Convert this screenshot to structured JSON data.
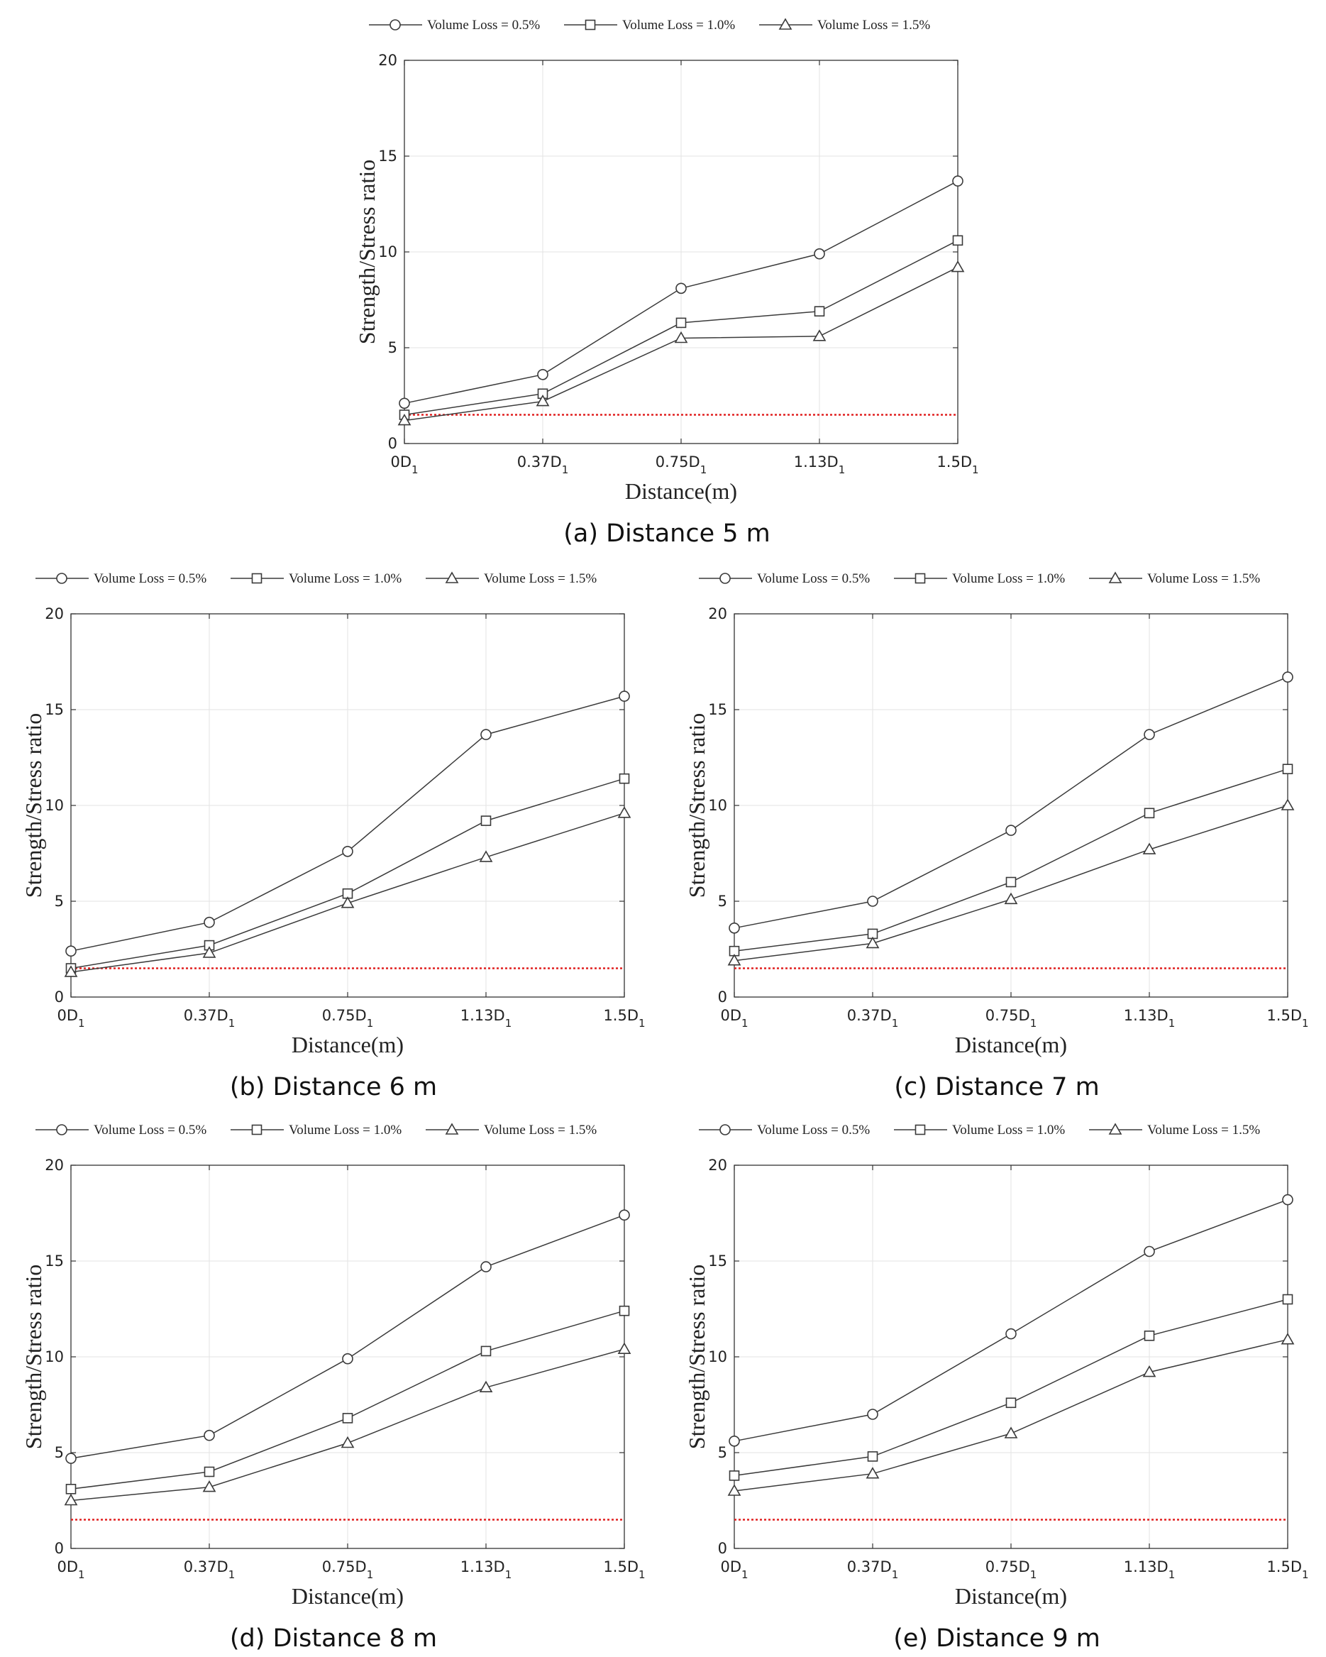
{
  "figure": {
    "captions": [
      "(a) Distance 5 m",
      "(b) Distance 6 m",
      "(c) Distance 7 m",
      "(d) Distance 8 m",
      "(e) Distance 9 m"
    ]
  },
  "colors": {
    "line": "#3a3a3a",
    "threshold": "#e02020",
    "grid": "#e3e3e3",
    "axis": "#333333"
  },
  "chart_data": [
    {
      "type": "line",
      "caption": "(a) Distance 5 m",
      "categories": [
        "0D1",
        "0.37D1",
        "0.75D1",
        "1.13D1",
        "1.5D1"
      ],
      "tick_labels": [
        {
          "main": "0D",
          "sub": "1"
        },
        {
          "main": "0.37D",
          "sub": "1"
        },
        {
          "main": "0.75D",
          "sub": "1"
        },
        {
          "main": "1.13D",
          "sub": "1"
        },
        {
          "main": "1.5D",
          "sub": "1"
        }
      ],
      "xlabel": "Distance(m)",
      "ylabel": "Strength/Stress ratio",
      "ylim": [
        0,
        20
      ],
      "yticks": [
        0,
        5,
        10,
        15,
        20
      ],
      "grid": true,
      "legend_position": "top",
      "threshold": 1.5,
      "series": [
        {
          "name": "Volume Loss = 0.5%",
          "marker": "circle",
          "values": [
            2.1,
            3.6,
            8.1,
            9.9,
            13.7
          ]
        },
        {
          "name": "Volume Loss = 1.0%",
          "marker": "square",
          "values": [
            1.5,
            2.6,
            6.3,
            6.9,
            10.6
          ]
        },
        {
          "name": "Volume Loss = 1.5%",
          "marker": "triangle",
          "values": [
            1.2,
            2.2,
            5.5,
            5.6,
            9.2
          ]
        }
      ]
    },
    {
      "type": "line",
      "caption": "(b) Distance 6 m",
      "categories": [
        "0D1",
        "0.37D1",
        "0.75D1",
        "1.13D1",
        "1.5D1"
      ],
      "tick_labels": [
        {
          "main": "0D",
          "sub": "1"
        },
        {
          "main": "0.37D",
          "sub": "1"
        },
        {
          "main": "0.75D",
          "sub": "1"
        },
        {
          "main": "1.13D",
          "sub": "1"
        },
        {
          "main": "1.5D",
          "sub": "1"
        }
      ],
      "xlabel": "Distance(m)",
      "ylabel": "Strength/Stress ratio",
      "ylim": [
        0,
        20
      ],
      "yticks": [
        0,
        5,
        10,
        15,
        20
      ],
      "grid": true,
      "legend_position": "top",
      "threshold": 1.5,
      "series": [
        {
          "name": "Volume Loss = 0.5%",
          "marker": "circle",
          "values": [
            2.4,
            3.9,
            7.6,
            13.7,
            15.7
          ]
        },
        {
          "name": "Volume Loss = 1.0%",
          "marker": "square",
          "values": [
            1.5,
            2.7,
            5.4,
            9.2,
            11.4
          ]
        },
        {
          "name": "Volume Loss = 1.5%",
          "marker": "triangle",
          "values": [
            1.3,
            2.3,
            4.9,
            7.3,
            9.6
          ]
        }
      ]
    },
    {
      "type": "line",
      "caption": "(c) Distance 7 m",
      "categories": [
        "0D1",
        "0.37D1",
        "0.75D1",
        "1.13D1",
        "1.5D1"
      ],
      "tick_labels": [
        {
          "main": "0D",
          "sub": "1"
        },
        {
          "main": "0.37D",
          "sub": "1"
        },
        {
          "main": "0.75D",
          "sub": "1"
        },
        {
          "main": "1.13D",
          "sub": "1"
        },
        {
          "main": "1.5D",
          "sub": "1"
        }
      ],
      "xlabel": "Distance(m)",
      "ylabel": "Strength/Stress ratio",
      "ylim": [
        0,
        20
      ],
      "yticks": [
        0,
        5,
        10,
        15,
        20
      ],
      "grid": true,
      "legend_position": "top",
      "threshold": 1.5,
      "series": [
        {
          "name": "Volume Loss = 0.5%",
          "marker": "circle",
          "values": [
            3.6,
            5.0,
            8.7,
            13.7,
            16.7
          ]
        },
        {
          "name": "Volume Loss = 1.0%",
          "marker": "square",
          "values": [
            2.4,
            3.3,
            6.0,
            9.6,
            11.9
          ]
        },
        {
          "name": "Volume Loss = 1.5%",
          "marker": "triangle",
          "values": [
            1.9,
            2.8,
            5.1,
            7.7,
            10.0
          ]
        }
      ]
    },
    {
      "type": "line",
      "caption": "(d) Distance 8 m",
      "categories": [
        "0D1",
        "0.37D1",
        "0.75D1",
        "1.13D1",
        "1.5D1"
      ],
      "tick_labels": [
        {
          "main": "0D",
          "sub": "1"
        },
        {
          "main": "0.37D",
          "sub": "1"
        },
        {
          "main": "0.75D",
          "sub": "1"
        },
        {
          "main": "1.13D",
          "sub": "1"
        },
        {
          "main": "1.5D",
          "sub": "1"
        }
      ],
      "xlabel": "Distance(m)",
      "ylabel": "Strength/Stress ratio",
      "ylim": [
        0,
        20
      ],
      "yticks": [
        0,
        5,
        10,
        15,
        20
      ],
      "grid": true,
      "legend_position": "top",
      "threshold": 1.5,
      "series": [
        {
          "name": "Volume Loss = 0.5%",
          "marker": "circle",
          "values": [
            4.7,
            5.9,
            9.9,
            14.7,
            17.4
          ]
        },
        {
          "name": "Volume Loss = 1.0%",
          "marker": "square",
          "values": [
            3.1,
            4.0,
            6.8,
            10.3,
            12.4
          ]
        },
        {
          "name": "Volume Loss = 1.5%",
          "marker": "triangle",
          "values": [
            2.5,
            3.2,
            5.5,
            8.4,
            10.4
          ]
        }
      ]
    },
    {
      "type": "line",
      "caption": "(e) Distance 9 m",
      "categories": [
        "0D1",
        "0.37D1",
        "0.75D1",
        "1.13D1",
        "1.5D1"
      ],
      "tick_labels": [
        {
          "main": "0D",
          "sub": "1"
        },
        {
          "main": "0.37D",
          "sub": "1"
        },
        {
          "main": "0.75D",
          "sub": "1"
        },
        {
          "main": "1.13D",
          "sub": "1"
        },
        {
          "main": "1.5D",
          "sub": "1"
        }
      ],
      "xlabel": "Distance(m)",
      "ylabel": "Strength/Stress ratio",
      "ylim": [
        0,
        20
      ],
      "yticks": [
        0,
        5,
        10,
        15,
        20
      ],
      "grid": true,
      "legend_position": "top",
      "threshold": 1.5,
      "series": [
        {
          "name": "Volume Loss = 0.5%",
          "marker": "circle",
          "values": [
            5.6,
            7.0,
            11.2,
            15.5,
            18.2
          ]
        },
        {
          "name": "Volume Loss = 1.0%",
          "marker": "square",
          "values": [
            3.8,
            4.8,
            7.6,
            11.1,
            13.0
          ]
        },
        {
          "name": "Volume Loss = 1.5%",
          "marker": "triangle",
          "values": [
            3.0,
            3.9,
            6.0,
            9.2,
            10.9
          ]
        }
      ]
    }
  ]
}
